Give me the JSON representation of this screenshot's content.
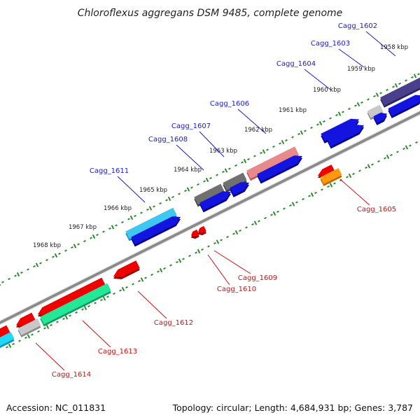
{
  "title": "Chloroflexus aggregans DSM 9485, complete genome",
  "footer": {
    "accession": "Accession: NC_011831",
    "summary": "Topology: circular; Length: 4,684,931 bp; Genes: 3,787"
  },
  "colors": {
    "forward_label": "#1a1acc",
    "reverse_label": "#cc1111",
    "tick": "#2e8b2e",
    "backbone": "#888888"
  },
  "scale_labels": [
    "1958 kbp",
    "1959 kbp",
    "1960 kbp",
    "1961 kbp",
    "1962 kbp",
    "1963 kbp",
    "1964 kbp",
    "1965 kbp",
    "1966 kbp",
    "1967 kbp",
    "1968 kbp"
  ],
  "forward_labels": [
    "Cagg_1602",
    "Cagg_1603",
    "Cagg_1604",
    "Cagg_1606",
    "Cagg_1607",
    "Cagg_1608",
    "Cagg_1611"
  ],
  "reverse_labels": [
    "Cagg_1605",
    "Cagg_1609",
    "Cagg_1610",
    "Cagg_1612",
    "Cagg_1613",
    "Cagg_1614"
  ]
}
